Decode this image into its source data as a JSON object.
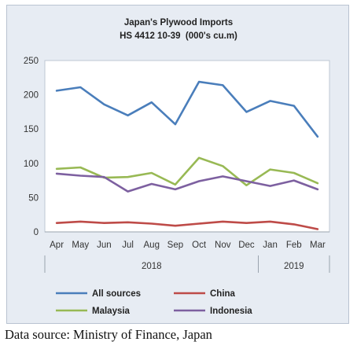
{
  "chart_data": {
    "type": "line",
    "title": "Japan's Plywood Imports",
    "subtitle": "HS 4412 10-39  (000's cu.m)",
    "categories": [
      "Apr",
      "May",
      "Jun",
      "Jul",
      "Aug",
      "Sep",
      "Oct",
      "Nov",
      "Dec",
      "Jan",
      "Feb",
      "Mar"
    ],
    "year_groups": [
      {
        "label": "2018",
        "from": 0,
        "to": 8
      },
      {
        "label": "2019",
        "from": 9,
        "to": 11
      }
    ],
    "ylim": [
      0,
      250
    ],
    "yticks": [
      0,
      50,
      100,
      150,
      200,
      250
    ],
    "grid": false,
    "legend_position": "bottom",
    "series": [
      {
        "name": "All sources",
        "color": "#4a7ebb",
        "values": [
          206,
          211,
          186,
          170,
          189,
          157,
          219,
          214,
          175,
          191,
          184,
          139
        ]
      },
      {
        "name": "China",
        "color": "#be4b48",
        "values": [
          13,
          15,
          13,
          14,
          12,
          9,
          12,
          15,
          13,
          15,
          11,
          4
        ]
      },
      {
        "name": "Malaysia",
        "color": "#98b954",
        "values": [
          92,
          94,
          79,
          80,
          86,
          69,
          108,
          96,
          68,
          91,
          86,
          71
        ]
      },
      {
        "name": "Indonesia",
        "color": "#7d60a0",
        "values": [
          85,
          82,
          80,
          59,
          70,
          62,
          74,
          81,
          74,
          67,
          75,
          62
        ]
      }
    ]
  },
  "source_note": "Data source: Ministry of Finance, Japan"
}
